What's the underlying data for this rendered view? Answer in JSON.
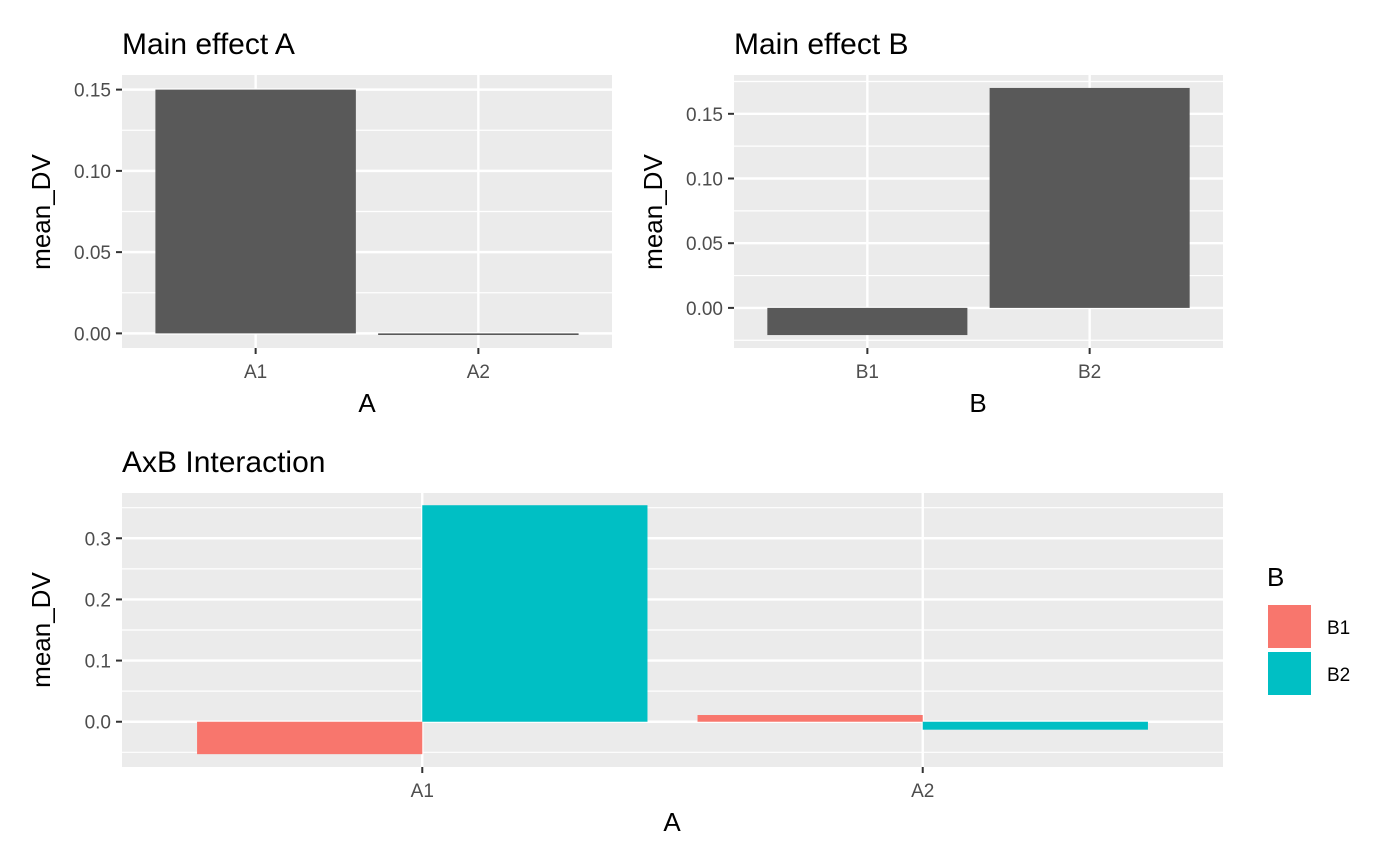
{
  "chart_data": [
    {
      "type": "bar",
      "title": "Main effect A",
      "xlabel": "A",
      "ylabel": "mean_DV",
      "categories": [
        "A1",
        "A2"
      ],
      "values": [
        0.15,
        -0.001
      ],
      "ylim": [
        -0.009,
        0.159
      ],
      "yticks": [
        0.0,
        0.05,
        0.1,
        0.15
      ],
      "ytick_labels": [
        "0.00",
        "0.05",
        "0.10",
        "0.15"
      ],
      "grid": true,
      "bar_color": "#595959"
    },
    {
      "type": "bar",
      "title": "Main effect B",
      "xlabel": "B",
      "ylabel": "mean_DV",
      "categories": [
        "B1",
        "B2"
      ],
      "values": [
        -0.021,
        0.17
      ],
      "ylim": [
        -0.031,
        0.18
      ],
      "yticks": [
        0.0,
        0.05,
        0.1,
        0.15
      ],
      "ytick_labels": [
        "0.00",
        "0.05",
        "0.10",
        "0.15"
      ],
      "grid": true,
      "bar_color": "#595959"
    },
    {
      "type": "bar",
      "title": "AxB Interaction",
      "xlabel": "A",
      "ylabel": "mean_DV",
      "categories": [
        "A1",
        "A2"
      ],
      "series": [
        {
          "name": "B1",
          "color": "#F8766D",
          "values": [
            -0.053,
            0.011
          ]
        },
        {
          "name": "B2",
          "color": "#00BFC4",
          "values": [
            0.354,
            -0.013
          ]
        }
      ],
      "ylim": [
        -0.074,
        0.374
      ],
      "yticks": [
        0.0,
        0.1,
        0.2,
        0.3
      ],
      "ytick_labels": [
        "0.0",
        "0.1",
        "0.2",
        "0.3"
      ],
      "grid": true,
      "legend": {
        "title": "B",
        "position": "right"
      }
    }
  ],
  "theme": {
    "panel_background": "#EBEBEB",
    "grid_color": "#FFFFFF",
    "tick_color": "#333333"
  }
}
